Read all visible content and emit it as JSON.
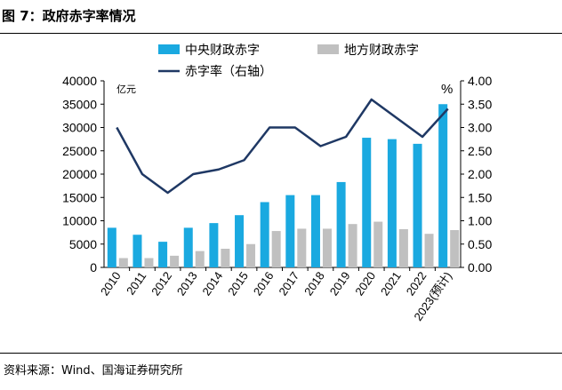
{
  "figure": {
    "title": "图 7：政府赤字率情况",
    "source": "资料来源：Wind、国海证券研究所"
  },
  "chart_data": {
    "type": "bar",
    "categories": [
      "2010",
      "2011",
      "2012",
      "2013",
      "2014",
      "2015",
      "2016",
      "2017",
      "2018",
      "2019",
      "2020",
      "2021",
      "2022",
      "2023(预计)"
    ],
    "series": [
      {
        "name": "中央财政赤字",
        "type": "bar",
        "axis": "left",
        "color": "#1aa9e0",
        "values": [
          8500,
          7000,
          5500,
          8500,
          9500,
          11200,
          14000,
          15500,
          15500,
          18300,
          27800,
          27500,
          26500,
          35000
        ]
      },
      {
        "name": "地方财政赤字",
        "type": "bar",
        "axis": "left",
        "color": "#c0c0c0",
        "values": [
          2000,
          2000,
          2500,
          3500,
          4000,
          5000,
          7800,
          8300,
          8300,
          9300,
          9800,
          8200,
          7200,
          8000
        ]
      },
      {
        "name": "赤字率（右轴）",
        "type": "line",
        "axis": "right",
        "color": "#1f3864",
        "values": [
          3.0,
          2.0,
          1.6,
          2.0,
          2.1,
          2.3,
          3.0,
          3.0,
          2.6,
          2.8,
          3.6,
          3.2,
          2.8,
          3.4
        ]
      }
    ],
    "y_left": {
      "label": "亿元",
      "min": 0,
      "max": 40000,
      "step": 5000,
      "ticks": [
        "0",
        "5000",
        "10000",
        "15000",
        "20000",
        "25000",
        "30000",
        "35000",
        "40000"
      ]
    },
    "y_right": {
      "label": "%",
      "min": 0,
      "max": 4,
      "step": 0.5,
      "ticks": [
        "0.00",
        "0.50",
        "1.00",
        "1.50",
        "2.00",
        "2.50",
        "3.00",
        "3.50",
        "4.00"
      ]
    },
    "legend_position": "top",
    "grid": false
  }
}
